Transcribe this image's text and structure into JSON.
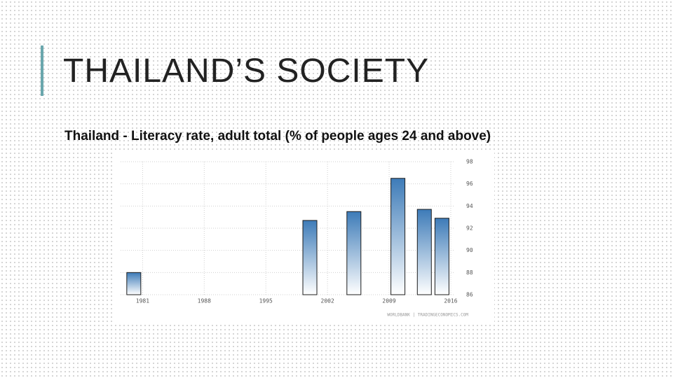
{
  "slide": {
    "title": "THAILAND’S SOCIETY",
    "subtitle": "Thailand - Literacy rate, adult total (% of people ages 24 and above)"
  },
  "chart_data": {
    "type": "bar",
    "source": "WORLDBANK | TRADINGECONOMICS.COM",
    "x": [
      1980,
      2000,
      2005,
      2010,
      2013,
      2015
    ],
    "values": [
      88.0,
      92.7,
      93.5,
      96.5,
      93.7,
      92.9
    ],
    "xlim": [
      1978.5,
      2016.4
    ],
    "xticks": [
      1981,
      1988,
      1995,
      2002,
      2009,
      2016
    ],
    "ylim": [
      86,
      98
    ],
    "yticks": [
      86,
      88,
      90,
      92,
      94,
      96,
      98
    ],
    "color": "#3d7bb8",
    "grid": true
  }
}
